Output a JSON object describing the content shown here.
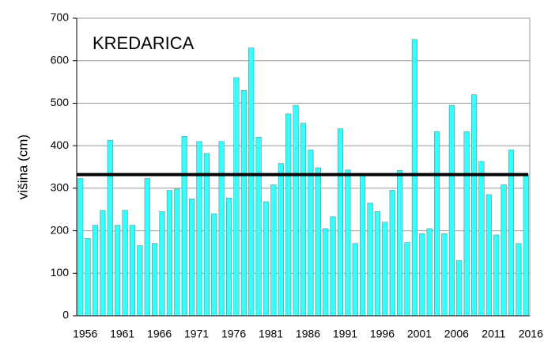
{
  "chart_data": {
    "type": "bar",
    "title": "KREDARICA",
    "y_label": "višina (cm)",
    "categories": [
      "1956",
      null,
      null,
      null,
      null,
      "1961",
      null,
      null,
      null,
      null,
      "1966",
      null,
      null,
      null,
      null,
      "1971",
      null,
      null,
      null,
      null,
      "1976",
      null,
      null,
      null,
      null,
      "1981",
      null,
      null,
      null,
      null,
      "1986",
      null,
      null,
      null,
      null,
      "1991",
      null,
      null,
      null,
      null,
      "1996",
      null,
      null,
      null,
      null,
      "2001",
      null,
      null,
      null,
      null,
      "2006",
      null,
      null,
      null,
      null,
      "2011",
      null,
      null,
      null,
      null,
      "2016"
    ],
    "values": [
      323,
      182,
      213,
      248,
      413,
      213,
      248,
      213,
      165,
      323,
      170,
      245,
      295,
      298,
      422,
      275,
      410,
      382,
      240,
      410,
      277,
      560,
      530,
      630,
      420,
      268,
      308,
      358,
      475,
      495,
      453,
      390,
      348,
      205,
      233,
      440,
      343,
      170,
      330,
      265,
      245,
      220,
      295,
      342,
      172,
      650,
      193,
      205,
      433,
      193,
      495,
      130,
      433,
      520,
      363,
      285,
      190,
      308,
      390,
      170,
      333
    ],
    "color": "#33ffff",
    "reference_line": {
      "value": 332,
      "color": "#000000"
    },
    "ylim": [
      0,
      700
    ],
    "yticks": [
      0,
      100,
      200,
      300,
      400,
      500,
      600,
      700
    ],
    "grid": true
  }
}
